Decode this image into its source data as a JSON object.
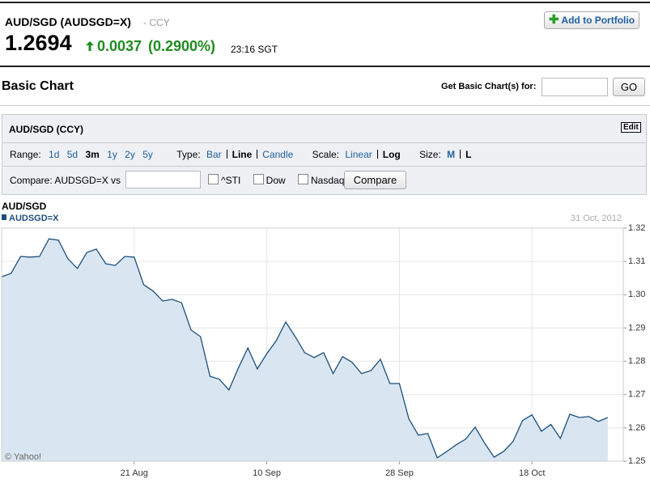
{
  "header": {
    "title": "AUD/SGD (AUDSGD=X)",
    "exchange": "- CCY",
    "price": "1.2694",
    "change": "0.0037",
    "change_pct": "(0.2900%)",
    "time": "23:16 SGT",
    "portfolio_button": "Add to Portfolio"
  },
  "section": {
    "title": "Basic Chart",
    "search_label": "Get Basic Chart(s) for:",
    "go_button": "GO"
  },
  "panel": {
    "title": "AUD/SGD (CCY)",
    "edit": "Edit",
    "range_label": "Range:",
    "ranges": [
      "1d",
      "5d",
      "3m",
      "1y",
      "2y",
      "5y"
    ],
    "type_label": "Type:",
    "types": [
      "Bar",
      "Line",
      "Candle"
    ],
    "scale_label": "Scale:",
    "scales": [
      "Linear",
      "Log"
    ],
    "size_label": "Size:",
    "sizes": [
      "M",
      "L"
    ],
    "compare_label": "Compare:",
    "compare_base": "AUDSGD=X vs",
    "compare_options": [
      "^STI",
      "Dow",
      "Nasdaq"
    ],
    "compare_button": "Compare"
  },
  "chart_data": {
    "type": "area",
    "title": "AUD/SGD",
    "annotations": [
      "31 Oct, 2012",
      "© Yahoo!"
    ],
    "categories": [
      null,
      null,
      null,
      null,
      null,
      null,
      null,
      null,
      null,
      null,
      null,
      null,
      null,
      null,
      "21 Aug",
      null,
      null,
      null,
      null,
      null,
      null,
      null,
      null,
      null,
      null,
      null,
      null,
      null,
      "10 Sep",
      null,
      null,
      null,
      null,
      null,
      null,
      null,
      null,
      null,
      null,
      null,
      null,
      null,
      "28 Sep",
      null,
      null,
      null,
      null,
      null,
      null,
      null,
      null,
      null,
      null,
      null,
      null,
      null,
      "18 Oct",
      null,
      null,
      null,
      null,
      null,
      null,
      null,
      null
    ],
    "series": [
      {
        "name": "AUDSGD=X",
        "color": "#1d4f7c",
        "fill": "#d9e6f1",
        "values": [
          1.3054,
          1.3064,
          1.3115,
          1.3113,
          1.3115,
          1.3168,
          1.3164,
          1.3108,
          1.3079,
          1.3127,
          1.3137,
          1.3093,
          1.3088,
          1.3115,
          1.3113,
          1.303,
          1.3011,
          1.2981,
          1.2986,
          1.2976,
          1.2894,
          1.2874,
          1.2755,
          1.2746,
          1.2714,
          1.278,
          1.284,
          1.2777,
          1.2823,
          1.2862,
          1.2918,
          1.2874,
          1.2826,
          1.2811,
          1.2826,
          1.2763,
          1.2814,
          1.2797,
          1.2763,
          1.2772,
          1.2806,
          1.2733,
          1.2733,
          1.2627,
          1.2578,
          1.2583,
          1.251,
          1.2529,
          1.2549,
          1.2566,
          1.2602,
          1.2554,
          1.2512,
          1.2529,
          1.2559,
          1.2622,
          1.2639,
          1.259,
          1.261,
          1.2568,
          1.2641,
          1.2631,
          1.2634,
          1.2619,
          1.2631
        ]
      }
    ],
    "ylim": [
      1.25,
      1.32
    ],
    "yticks": [
      1.25,
      1.26,
      1.27,
      1.28,
      1.29,
      {
        "value": 1.3,
        "label": "1.30"
      },
      1.31,
      1.32
    ],
    "grid": true
  }
}
